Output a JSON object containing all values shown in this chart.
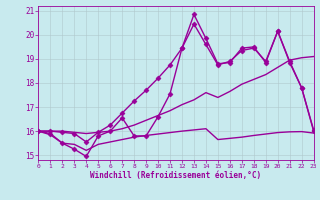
{
  "xlabel": "Windchill (Refroidissement éolien,°C)",
  "xlim": [
    0,
    23
  ],
  "ylim": [
    14.8,
    21.2
  ],
  "yticks": [
    15,
    16,
    17,
    18,
    19,
    20,
    21
  ],
  "xticks": [
    0,
    1,
    2,
    3,
    4,
    5,
    6,
    7,
    8,
    9,
    10,
    11,
    12,
    13,
    14,
    15,
    16,
    17,
    18,
    19,
    20,
    21,
    22,
    23
  ],
  "bg_color": "#c8eaee",
  "line_color": "#990099",
  "grid_color": "#b0c8cc",
  "lines": [
    {
      "x": [
        0,
        1,
        2,
        3,
        4,
        5,
        6,
        7,
        8,
        9,
        10,
        11,
        12,
        13,
        14,
        15,
        16,
        17,
        18,
        19,
        20,
        21,
        22,
        23
      ],
      "y": [
        16.0,
        15.9,
        15.5,
        15.25,
        14.95,
        15.8,
        16.0,
        16.55,
        15.8,
        15.8,
        16.6,
        17.55,
        19.45,
        20.85,
        19.85,
        18.8,
        18.85,
        19.45,
        19.5,
        18.85,
        20.15,
        18.85,
        17.8,
        16.0
      ],
      "marker": "D",
      "markersize": 2.5,
      "linewidth": 1.0,
      "with_marker": true
    },
    {
      "x": [
        0,
        1,
        2,
        3,
        4,
        5,
        6,
        7,
        8,
        9,
        10,
        11,
        12,
        13,
        14,
        15,
        16,
        17,
        18,
        19,
        20,
        21,
        22,
        23
      ],
      "y": [
        16.0,
        15.85,
        15.5,
        15.45,
        15.2,
        15.45,
        15.55,
        15.65,
        15.75,
        15.82,
        15.88,
        15.94,
        16.0,
        16.05,
        16.1,
        15.65,
        15.7,
        15.75,
        15.82,
        15.88,
        15.94,
        15.97,
        15.98,
        15.92
      ],
      "marker": null,
      "markersize": 0,
      "linewidth": 1.0,
      "with_marker": false
    },
    {
      "x": [
        0,
        1,
        2,
        3,
        4,
        5,
        6,
        7,
        8,
        9,
        10,
        11,
        12,
        13,
        14,
        15,
        16,
        17,
        18,
        19,
        20,
        21,
        22,
        23
      ],
      "y": [
        16.0,
        16.0,
        16.0,
        15.95,
        15.9,
        15.95,
        16.0,
        16.1,
        16.25,
        16.45,
        16.65,
        16.85,
        17.1,
        17.3,
        17.6,
        17.4,
        17.65,
        17.95,
        18.15,
        18.35,
        18.65,
        18.95,
        19.05,
        19.1
      ],
      "marker": null,
      "markersize": 0,
      "linewidth": 1.0,
      "with_marker": false
    },
    {
      "x": [
        0,
        1,
        2,
        3,
        4,
        5,
        6,
        7,
        8,
        9,
        10,
        11,
        12,
        13,
        14,
        15,
        16,
        17,
        18,
        19,
        20,
        21,
        22,
        23
      ],
      "y": [
        16.0,
        16.0,
        15.95,
        15.9,
        15.55,
        15.95,
        16.25,
        16.75,
        17.25,
        17.7,
        18.2,
        18.75,
        19.45,
        20.45,
        19.6,
        18.75,
        18.9,
        19.35,
        19.45,
        18.9,
        20.15,
        18.9,
        17.8,
        16.05
      ],
      "marker": "D",
      "markersize": 2.5,
      "linewidth": 1.0,
      "with_marker": true
    }
  ]
}
